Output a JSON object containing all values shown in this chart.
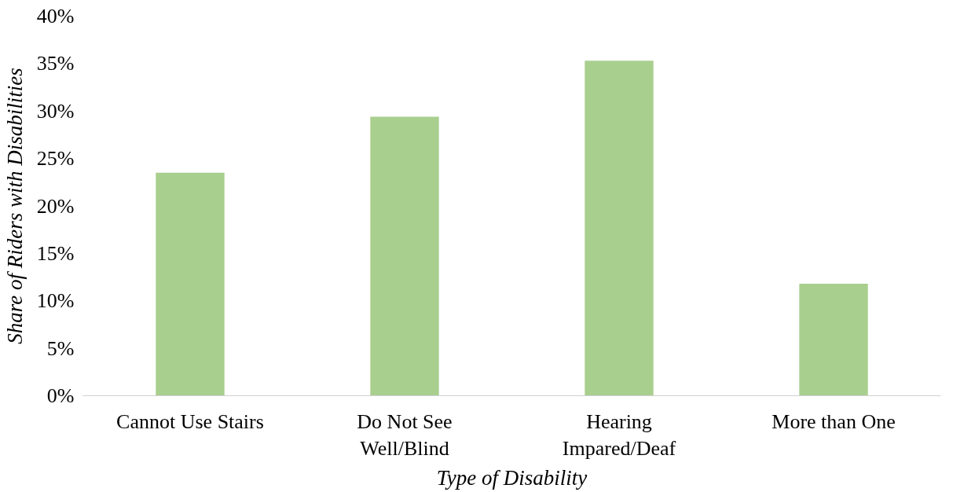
{
  "chart_data": {
    "type": "bar",
    "xlabel": "Type of Disability",
    "ylabel": "Share of Riders with Disabilities",
    "categories": [
      "Cannot Use Stairs",
      "Do Not See\nWell/Blind",
      "Hearing\nImpared/Deaf",
      "More than One"
    ],
    "values": [
      23.5,
      29.4,
      35.3,
      11.8
    ],
    "color": "#a9cf8e",
    "ylim": [
      0,
      40
    ],
    "yticks": [
      {
        "value": 0,
        "label": "0%"
      },
      {
        "value": 5,
        "label": "5%"
      },
      {
        "value": 10,
        "label": "10%"
      },
      {
        "value": 15,
        "label": "15%"
      },
      {
        "value": 20,
        "label": "20%"
      },
      {
        "value": 25,
        "label": "25%"
      },
      {
        "value": 30,
        "label": "30%"
      },
      {
        "value": 35,
        "label": "35%"
      },
      {
        "value": 40,
        "label": "40%"
      }
    ],
    "grid": false
  }
}
